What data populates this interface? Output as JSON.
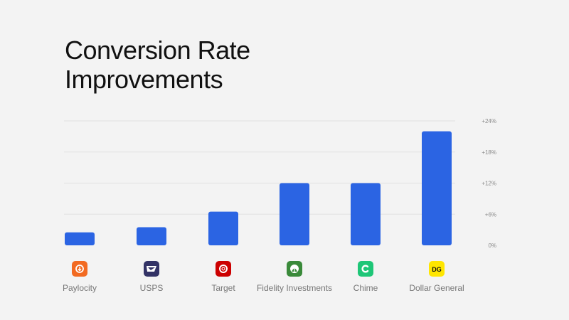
{
  "page": {
    "title_line1": "Conversion Rate",
    "title_line2": "Improvements"
  },
  "chart_data": {
    "type": "bar",
    "title": "Conversion Rate Improvements",
    "categories": [
      "Paylocity",
      "USPS",
      "Target",
      "Fidelity Investments",
      "Chime",
      "Dollar General"
    ],
    "values": [
      2.5,
      3.5,
      6.5,
      12,
      12,
      22
    ],
    "ylim": [
      0,
      24
    ],
    "yticks": [
      0,
      6,
      12,
      18,
      24
    ],
    "ytick_labels": [
      "0%",
      "+6%",
      "+12%",
      "+18%",
      "+24%"
    ],
    "grid": true,
    "bar_color": "#2b64e3",
    "logos": [
      {
        "icon": "paylocity-logo-icon",
        "color": "#f26a21"
      },
      {
        "icon": "usps-logo-icon",
        "color": "#333366"
      },
      {
        "icon": "target-logo-icon",
        "color": "#cc0000"
      },
      {
        "icon": "fidelity-logo-icon",
        "color": "#3a8a3a"
      },
      {
        "icon": "chime-logo-icon",
        "color": "#1ec677"
      },
      {
        "icon": "dollar-general-logo-icon",
        "color": "#ffe600"
      }
    ]
  }
}
